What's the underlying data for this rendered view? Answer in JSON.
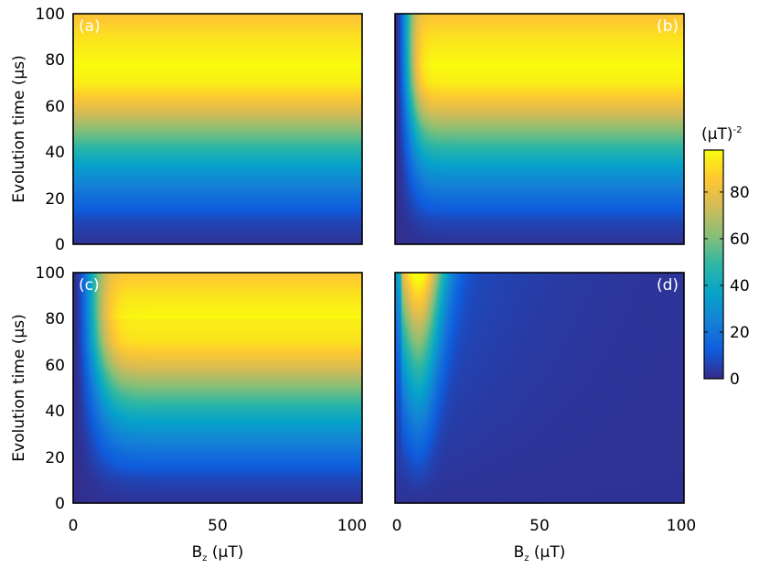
{
  "chart_data": {
    "type": "heatmap",
    "xlabel": {
      "main": "B",
      "sub": "z",
      "unit": " (μT)"
    },
    "ylabel": "Evolution time (μs)",
    "xlim": [
      0,
      100
    ],
    "ylim": [
      0,
      100
    ],
    "x_ticks": [
      "0",
      "50",
      "100"
    ],
    "y_ticks": [
      "0",
      "20",
      "40",
      "60",
      "80",
      "100"
    ],
    "colorbar": {
      "label": "(μT)",
      "label_sup": "-2",
      "range": [
        0,
        98
      ],
      "ticks": [
        "0",
        "20",
        "40",
        "60",
        "80"
      ],
      "colormap": [
        "#352a87",
        "#0f5cdd",
        "#1481d6",
        "#06a4ca",
        "#2eb7a4",
        "#87bf77",
        "#d1bb59",
        "#fec832",
        "#f9fb0e"
      ]
    },
    "panels": [
      {
        "label": "(a)",
        "label_position": "top-left",
        "description_values": {
          "model": "field-independent",
          "value_at_t": [
            [
              0,
              2
            ],
            [
              20,
              18
            ],
            [
              40,
              45
            ],
            [
              55,
              72
            ],
            [
              75,
              98
            ],
            [
              100,
              84
            ]
          ]
        }
      },
      {
        "label": "(b)",
        "label_position": "top-right",
        "description_values": {
          "model": "suppressed near Bz=0",
          "value_at_Bz40_t": [
            [
              0,
              2
            ],
            [
              20,
              18
            ],
            [
              40,
              45
            ],
            [
              55,
              72
            ],
            [
              75,
              96
            ],
            [
              100,
              86
            ]
          ]
        }
      },
      {
        "label": "(c)",
        "label_position": "top-left",
        "description_values": {
          "model": "suppressed near Bz=0, slightly reduced",
          "value_at_Bz40_t": [
            [
              0,
              2
            ],
            [
              20,
              16
            ],
            [
              40,
              42
            ],
            [
              55,
              70
            ],
            [
              75,
              94
            ],
            [
              100,
              90
            ]
          ]
        }
      },
      {
        "label": "(d)",
        "label_position": "top-right",
        "description_values": {
          "model": "peak near Bz=8, decays with Bz",
          "value_at_Bz8_t": [
            [
              0,
              2
            ],
            [
              40,
              30
            ],
            [
              60,
              50
            ],
            [
              80,
              68
            ],
            [
              100,
              88
            ]
          ],
          "value_at_Bz50_t100": 12
        }
      }
    ]
  }
}
